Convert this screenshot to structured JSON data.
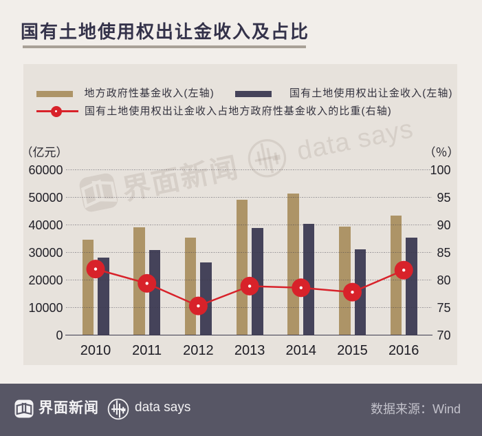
{
  "colors": {
    "page_bg": "#f2eeea",
    "card_bg": "#e7e2dc",
    "title": "#34324a",
    "underline": "#a9a197",
    "bar_fund": "#ad9467",
    "bar_land": "#45435a",
    "line_ratio": "#d8222a",
    "footer_bg": "#575665"
  },
  "title": {
    "text": "国有土地使用权出让金收入及占比"
  },
  "legend": {
    "fund_label": "地方政府性基金收入(左轴)",
    "land_label": "国有土地使用权出让金收入(左轴)",
    "ratio_label": "国有土地使用权出让金收入占地方政府性基金收入的比重(右轴)"
  },
  "watermark": {
    "brand": "界面新闻",
    "brand2": "data says"
  },
  "chart_data": {
    "type": "bar+line",
    "categories": [
      "2010",
      "2011",
      "2012",
      "2013",
      "2014",
      "2015",
      "2016"
    ],
    "series": [
      {
        "name": "地方政府性基金收入(左轴)",
        "type": "bar",
        "axis": "left",
        "values": [
          34700,
          39100,
          35300,
          49200,
          51400,
          39400,
          43500
        ]
      },
      {
        "name": "国有土地使用权出让金收入(左轴)",
        "type": "bar",
        "axis": "left",
        "values": [
          28100,
          31000,
          26300,
          39000,
          40400,
          31200,
          35500
        ]
      },
      {
        "name": "国有土地使用权出让金收入占地方政府性基金收入的比重(右轴)",
        "type": "line",
        "axis": "right",
        "values": [
          82.0,
          79.4,
          75.3,
          78.9,
          78.6,
          77.8,
          81.8
        ]
      }
    ],
    "left_axis": {
      "name": "（亿元）",
      "min": 0,
      "max": 60000,
      "step": 10000
    },
    "right_axis": {
      "name": "（％）",
      "min": 70,
      "max": 100,
      "step": 5
    },
    "grid": "dashed horizontal",
    "legend_position": "top-left"
  },
  "footer": {
    "brand": "界面新闻",
    "brand2": "data says",
    "source": "数据来源：Wind"
  }
}
